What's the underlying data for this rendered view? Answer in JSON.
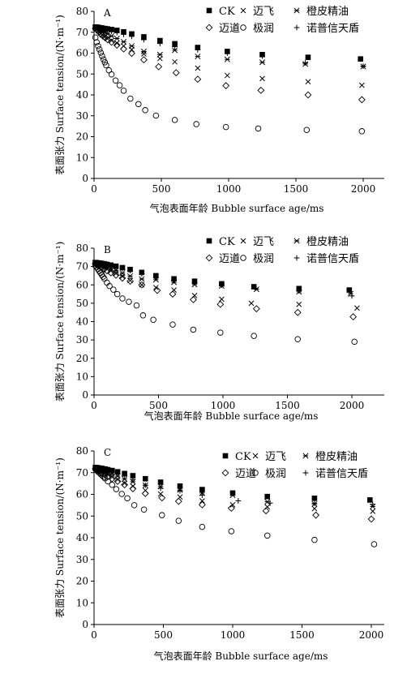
{
  "chart_data": [
    {
      "type": "scatter",
      "panel_label": "A",
      "xlabel": "气泡表面年龄 Bubble surface age/ms",
      "ylabel": "表面张力 Surface tension/(N·m⁻¹)",
      "xlim": [
        0,
        2100
      ],
      "ylim": [
        0,
        80
      ],
      "xticks": [
        "0",
        "500",
        "1000",
        "1500",
        "2000"
      ],
      "yticks": [
        "0",
        "10",
        "20",
        "30",
        "40",
        "50",
        "60",
        "70",
        "80"
      ],
      "legend": {
        "placement": "top-right",
        "rows": [
          [
            "CK",
            "迈飞",
            "橙皮精油"
          ],
          [
            "迈道",
            "极润",
            "诺普信天盾"
          ]
        ]
      },
      "series": [
        {
          "name": "CK",
          "marker": "square",
          "x": [
            10,
            20,
            30,
            40,
            50,
            60,
            80,
            100,
            130,
            170,
            220,
            280,
            370,
            490,
            600,
            770,
            990,
            1250,
            1590,
            1980
          ],
          "y": [
            72.5,
            72.5,
            72.3,
            72.2,
            72.1,
            72.0,
            71.8,
            71.6,
            71.3,
            70.9,
            70.2,
            69.2,
            67.8,
            66.0,
            64.5,
            62.7,
            60.8,
            59.3,
            58.0,
            57.2
          ]
        },
        {
          "name": "迈飞",
          "marker": "x",
          "x": [
            10,
            20,
            30,
            40,
            50,
            60,
            80,
            100,
            130,
            170,
            220,
            280,
            370,
            490,
            600,
            770,
            990,
            1250,
            1590,
            1990
          ],
          "y": [
            72.0,
            71.5,
            70.8,
            70.2,
            69.5,
            68.8,
            67.8,
            66.9,
            66.0,
            64.8,
            63.4,
            61.7,
            59.6,
            57.4,
            55.8,
            52.8,
            49.3,
            47.8,
            46.3,
            44.6
          ]
        },
        {
          "name": "橙皮精油",
          "marker": "asterisk",
          "x": [
            10,
            20,
            30,
            40,
            50,
            60,
            80,
            100,
            130,
            170,
            220,
            280,
            370,
            490,
            600,
            770,
            990,
            1250,
            1570,
            2000
          ],
          "y": [
            72.1,
            71.9,
            71.6,
            71.3,
            71.0,
            70.6,
            70.0,
            69.2,
            68.2,
            67.0,
            65.4,
            63.4,
            60.8,
            59.3,
            61.4,
            58.4,
            57.0,
            55.6,
            54.8,
            53.6
          ]
        },
        {
          "name": "迈道",
          "marker": "diamond",
          "x": [
            10,
            20,
            30,
            40,
            50,
            60,
            80,
            100,
            130,
            170,
            220,
            280,
            370,
            480,
            610,
            770,
            980,
            1240,
            1590,
            1990
          ],
          "y": [
            71.8,
            71.2,
            70.6,
            70.0,
            69.2,
            68.5,
            67.5,
            66.5,
            65.2,
            63.8,
            62.0,
            59.9,
            56.8,
            53.5,
            50.6,
            47.5,
            44.4,
            42.2,
            40.0,
            37.7
          ]
        },
        {
          "name": "极润",
          "marker": "circle",
          "x": [
            10,
            20,
            30,
            40,
            50,
            60,
            70,
            80,
            90,
            110,
            130,
            160,
            190,
            220,
            270,
            330,
            380,
            460,
            600,
            760,
            980,
            1220,
            1580,
            1990
          ],
          "y": [
            67.5,
            65.2,
            63.4,
            61.8,
            60.2,
            58.6,
            57.0,
            55.6,
            54.2,
            51.8,
            49.8,
            46.9,
            44.6,
            42.0,
            38.2,
            35.6,
            32.7,
            30.1,
            28.0,
            26.0,
            24.6,
            23.9,
            23.2,
            22.6
          ]
        },
        {
          "name": "诺普信天盾",
          "marker": "plus",
          "x": [
            10,
            20,
            30,
            40,
            50,
            60,
            80,
            100,
            130,
            170,
            220,
            280,
            370,
            490,
            600,
            770,
            990,
            1250,
            1570,
            2000
          ],
          "y": [
            72.4,
            72.3,
            72.1,
            72.0,
            71.8,
            71.6,
            71.3,
            70.9,
            70.4,
            69.8,
            69.0,
            68.0,
            66.4,
            64.6,
            63.1,
            61.6,
            60.0,
            58.6,
            55.4,
            53.8
          ]
        }
      ]
    },
    {
      "type": "scatter",
      "panel_label": "B",
      "xlabel": "气泡表面年龄 Bubble surface age/ms",
      "ylabel": "表面张力 Surface tension/(N·m⁻¹)",
      "xlim": [
        0,
        2100
      ],
      "ylim": [
        0,
        80
      ],
      "xticks": [
        "0",
        "500",
        "1000",
        "1500",
        "2000"
      ],
      "yticks": [
        "0",
        "10",
        "20",
        "30",
        "40",
        "50",
        "60",
        "70",
        "80"
      ],
      "legend": {
        "placement": "top-right",
        "rows": [
          [
            "CK",
            "迈飞",
            "橙皮精油"
          ],
          [
            "迈道",
            "极润",
            "诺普信天盾"
          ]
        ]
      },
      "series": [
        {
          "name": "CK",
          "marker": "square",
          "x": [
            10,
            20,
            30,
            40,
            50,
            60,
            80,
            100,
            130,
            170,
            220,
            280,
            370,
            480,
            620,
            780,
            990,
            1240,
            1590,
            1980
          ],
          "y": [
            72.2,
            72.1,
            72.0,
            71.9,
            71.8,
            71.7,
            71.5,
            71.2,
            70.8,
            70.2,
            69.4,
            68.4,
            66.8,
            65.0,
            63.3,
            62.0,
            60.6,
            59.0,
            58.0,
            57.2
          ]
        },
        {
          "name": "迈飞",
          "marker": "x",
          "x": [
            10,
            20,
            30,
            40,
            50,
            60,
            80,
            100,
            130,
            170,
            220,
            280,
            370,
            480,
            620,
            780,
            990,
            1220,
            1590,
            2040
          ],
          "y": [
            71.8,
            71.5,
            71.2,
            70.8,
            70.4,
            70.0,
            69.4,
            68.6,
            67.6,
            66.2,
            64.6,
            62.4,
            60.0,
            58.6,
            57.2,
            54.2,
            52.2,
            50.0,
            49.4,
            47.4
          ]
        },
        {
          "name": "橙皮精油",
          "marker": "asterisk",
          "x": [
            10,
            20,
            30,
            40,
            50,
            60,
            80,
            100,
            130,
            170,
            220,
            280,
            370,
            480,
            620,
            780,
            990,
            1260,
            1590,
            1990
          ],
          "y": [
            72.0,
            71.8,
            71.6,
            71.4,
            71.1,
            70.8,
            70.3,
            69.7,
            68.9,
            67.8,
            66.4,
            64.8,
            63.2,
            62.8,
            61.4,
            60.2,
            59.4,
            57.6,
            56.2,
            55.2
          ]
        },
        {
          "name": "迈道",
          "marker": "diamond",
          "x": [
            10,
            20,
            30,
            40,
            50,
            60,
            80,
            100,
            130,
            170,
            220,
            280,
            370,
            490,
            610,
            770,
            980,
            1260,
            1580,
            2010
          ],
          "y": [
            71.6,
            71.2,
            70.8,
            70.4,
            69.9,
            69.4,
            68.6,
            67.7,
            66.6,
            65.3,
            63.7,
            62.0,
            60.0,
            57.0,
            55.0,
            52.0,
            49.4,
            47.0,
            45.0,
            42.6
          ]
        },
        {
          "name": "极润",
          "marker": "circle",
          "x": [
            10,
            20,
            30,
            40,
            50,
            60,
            70,
            80,
            100,
            120,
            150,
            180,
            220,
            270,
            330,
            380,
            460,
            610,
            770,
            980,
            1240,
            1580,
            2020
          ],
          "y": [
            70.5,
            69.6,
            68.6,
            67.6,
            66.6,
            65.5,
            64.5,
            63.4,
            61.2,
            59.4,
            57.4,
            55.0,
            52.6,
            50.8,
            48.8,
            43.4,
            41.0,
            38.4,
            35.6,
            34.0,
            32.2,
            30.4,
            29.0
          ]
        },
        {
          "name": "诺普信天盾",
          "marker": "plus",
          "x": [
            10,
            20,
            30,
            40,
            50,
            60,
            80,
            100,
            130,
            170,
            220,
            280,
            370,
            480,
            620,
            780,
            990,
            1250,
            1590,
            2000
          ],
          "y": [
            72.1,
            72.0,
            71.9,
            71.8,
            71.6,
            71.4,
            71.1,
            70.7,
            70.2,
            69.6,
            68.8,
            67.8,
            66.0,
            64.0,
            62.4,
            61.2,
            59.8,
            58.2,
            56.8,
            54.0
          ]
        }
      ]
    },
    {
      "type": "scatter",
      "panel_label": "C",
      "xlabel": "气泡表面年龄 Bubble surface age/ms",
      "ylabel": "表面张力 Surface tension/(N·m⁻¹)",
      "xlim": [
        0,
        2100
      ],
      "ylim": [
        0,
        80
      ],
      "xticks": [
        "0",
        "500",
        "1000",
        "1500",
        "2000"
      ],
      "yticks": [
        "0",
        "10",
        "20",
        "30",
        "40",
        "50",
        "60",
        "70",
        "80"
      ],
      "legend": {
        "placement": "top-right",
        "rows": [
          [
            "CK",
            "迈飞",
            "橙皮精油"
          ],
          [
            "迈道",
            "极润",
            "诺普信天盾"
          ]
        ]
      },
      "series": [
        {
          "name": "CK",
          "marker": "square",
          "x": [
            10,
            20,
            30,
            40,
            50,
            60,
            80,
            100,
            130,
            170,
            220,
            280,
            370,
            480,
            620,
            780,
            1000,
            1250,
            1590,
            1990
          ],
          "y": [
            72.4,
            72.3,
            72.2,
            72.1,
            72.0,
            71.9,
            71.7,
            71.4,
            71.0,
            70.4,
            69.6,
            68.6,
            67.2,
            65.6,
            63.8,
            62.2,
            60.6,
            59.0,
            58.2,
            57.4
          ]
        },
        {
          "name": "迈飞",
          "marker": "x",
          "x": [
            10,
            20,
            30,
            40,
            50,
            60,
            80,
            100,
            130,
            170,
            220,
            280,
            370,
            480,
            620,
            780,
            1000,
            1250,
            1590,
            2010
          ],
          "y": [
            72.0,
            71.8,
            71.5,
            71.2,
            70.8,
            70.4,
            69.8,
            69.0,
            68.0,
            66.8,
            65.2,
            63.8,
            61.8,
            60.2,
            58.8,
            57.0,
            55.2,
            54.2,
            53.4,
            52.2
          ]
        },
        {
          "name": "橙皮精油",
          "marker": "asterisk",
          "x": [
            10,
            20,
            30,
            40,
            50,
            60,
            80,
            100,
            130,
            170,
            220,
            280,
            370,
            480,
            620,
            780,
            1000,
            1250,
            1590,
            2010
          ],
          "y": [
            72.2,
            72.0,
            71.8,
            71.6,
            71.4,
            71.2,
            70.8,
            70.2,
            69.4,
            68.4,
            67.0,
            65.8,
            64.2,
            63.6,
            62.0,
            60.6,
            59.6,
            56.6,
            55.6,
            54.4
          ]
        },
        {
          "name": "迈道",
          "marker": "diamond",
          "x": [
            10,
            20,
            30,
            40,
            50,
            60,
            80,
            100,
            130,
            170,
            220,
            280,
            370,
            490,
            610,
            780,
            990,
            1240,
            1600,
            2000
          ],
          "y": [
            71.8,
            71.4,
            71.0,
            70.6,
            70.2,
            69.8,
            69.0,
            68.2,
            67.2,
            66.0,
            64.4,
            62.6,
            60.4,
            58.4,
            56.8,
            55.2,
            53.6,
            52.4,
            50.4,
            48.6
          ]
        },
        {
          "name": "极润",
          "marker": "circle",
          "x": [
            10,
            20,
            30,
            40,
            50,
            60,
            70,
            80,
            100,
            130,
            160,
            200,
            240,
            290,
            360,
            490,
            610,
            780,
            990,
            1250,
            1590,
            2020
          ],
          "y": [
            71.6,
            71.0,
            70.4,
            69.8,
            69.2,
            68.6,
            68.0,
            67.4,
            66.0,
            64.4,
            62.4,
            60.2,
            58.2,
            55.0,
            53.0,
            50.4,
            47.8,
            45.0,
            43.0,
            41.0,
            39.0,
            37.0
          ]
        },
        {
          "name": "诺普信天盾",
          "marker": "plus",
          "x": [
            10,
            20,
            30,
            40,
            50,
            60,
            80,
            100,
            130,
            170,
            220,
            280,
            370,
            480,
            620,
            780,
            1040,
            1270,
            1590,
            2010
          ],
          "y": [
            72.3,
            72.2,
            72.1,
            72.0,
            71.8,
            71.6,
            71.2,
            70.8,
            70.2,
            69.4,
            68.4,
            66.8,
            64.2,
            62.8,
            61.6,
            59.6,
            57.0,
            56.0,
            55.8,
            55.4
          ]
        }
      ]
    }
  ]
}
